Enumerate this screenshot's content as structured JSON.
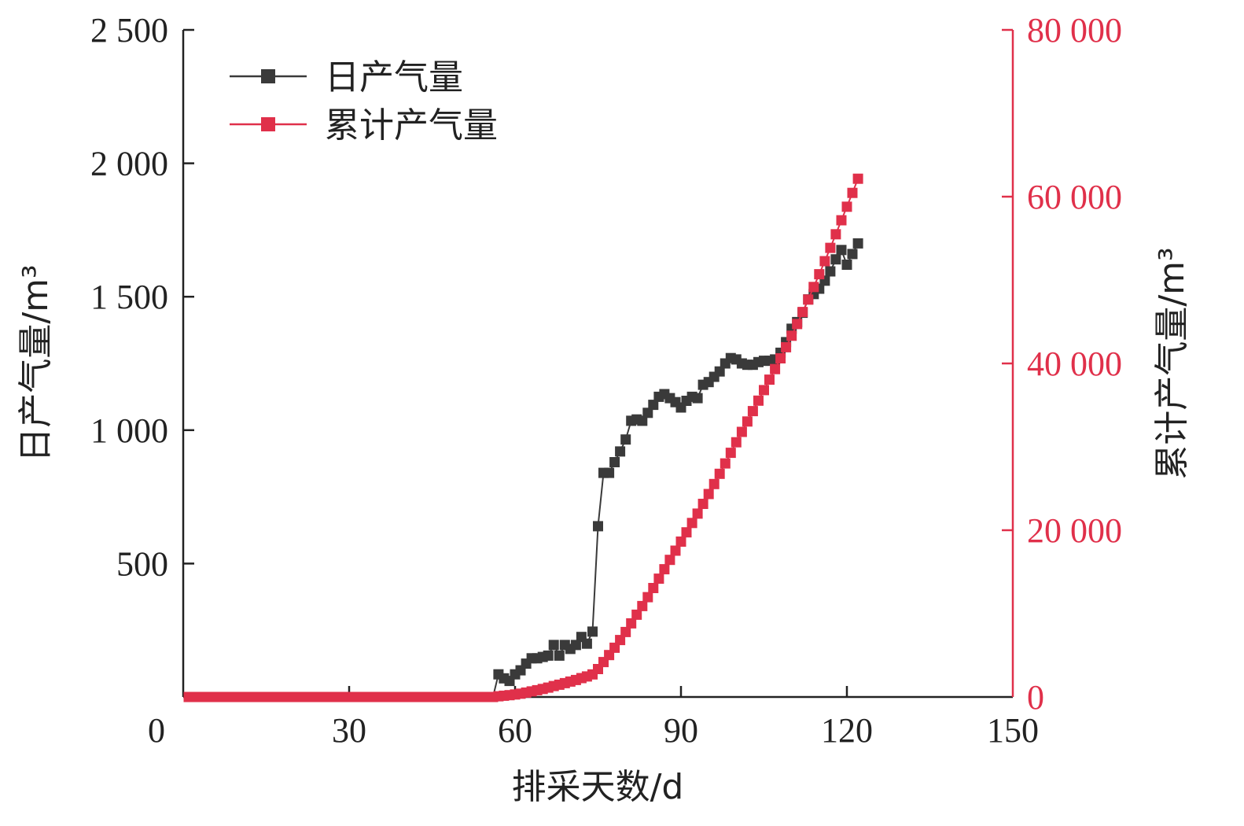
{
  "chart_data": {
    "type": "line",
    "xlabel": "排采天数/d",
    "ylabel_left": "日产气量/m³",
    "ylabel_right": "累计产气量/m³",
    "xlim": [
      0,
      150
    ],
    "ylim_left": [
      0,
      2500
    ],
    "ylim_right": [
      0,
      80000
    ],
    "x_ticks": [
      0,
      30,
      60,
      90,
      120,
      150
    ],
    "x_tick_labels": [
      "0",
      "30",
      "60",
      "90",
      "120",
      "150"
    ],
    "y_left_ticks": [
      500,
      1000,
      1500,
      2000,
      2500
    ],
    "y_left_tick_labels": [
      "500",
      "1 000",
      "1 500",
      "2 000",
      "2 500"
    ],
    "y_right_ticks": [
      0,
      20000,
      40000,
      60000,
      80000
    ],
    "y_right_tick_labels": [
      "0",
      "20 000",
      "40 000",
      "60 000",
      "80 000"
    ],
    "grid": false,
    "legend_position": "top-left",
    "colors": {
      "daily": "#3a3a3a",
      "cumulative": "#e0304a",
      "axis": "#222222"
    },
    "series": [
      {
        "name": "日产气量",
        "axis": "left",
        "color": "#3a3a3a",
        "x": [
          1,
          2,
          3,
          4,
          5,
          6,
          7,
          8,
          9,
          10,
          11,
          12,
          13,
          14,
          15,
          16,
          17,
          18,
          19,
          20,
          21,
          22,
          23,
          24,
          25,
          26,
          27,
          28,
          29,
          30,
          31,
          32,
          33,
          34,
          35,
          36,
          37,
          38,
          39,
          40,
          41,
          42,
          43,
          44,
          45,
          46,
          47,
          48,
          49,
          50,
          51,
          52,
          53,
          54,
          55,
          56,
          57,
          58,
          59,
          60,
          61,
          62,
          63,
          64,
          65,
          66,
          67,
          68,
          69,
          70,
          71,
          72,
          73,
          74,
          75,
          76,
          77,
          78,
          79,
          80,
          81,
          82,
          83,
          84,
          85,
          86,
          87,
          88,
          89,
          90,
          91,
          92,
          93,
          94,
          95,
          96,
          97,
          98,
          99,
          100,
          101,
          102,
          103,
          104,
          105,
          106,
          107,
          108,
          109,
          110,
          111,
          112,
          113,
          114,
          115,
          116,
          117,
          118,
          119,
          120,
          121,
          122
        ],
        "y": [
          0,
          0,
          0,
          0,
          0,
          0,
          0,
          0,
          0,
          0,
          0,
          0,
          0,
          0,
          0,
          0,
          0,
          0,
          0,
          0,
          0,
          0,
          0,
          0,
          0,
          0,
          0,
          0,
          0,
          0,
          0,
          0,
          0,
          0,
          0,
          0,
          0,
          0,
          0,
          0,
          0,
          0,
          0,
          0,
          0,
          0,
          0,
          0,
          0,
          0,
          0,
          0,
          0,
          0,
          0,
          0,
          85,
          70,
          60,
          85,
          100,
          125,
          145,
          145,
          150,
          155,
          195,
          155,
          195,
          180,
          195,
          225,
          200,
          245,
          640,
          840,
          840,
          880,
          920,
          965,
          1035,
          1040,
          1035,
          1065,
          1095,
          1125,
          1135,
          1120,
          1105,
          1085,
          1110,
          1125,
          1120,
          1170,
          1180,
          1200,
          1220,
          1250,
          1270,
          1265,
          1250,
          1245,
          1245,
          1255,
          1260,
          1260,
          1265,
          1290,
          1330,
          1380,
          1405,
          1440,
          1490,
          1510,
          1530,
          1560,
          1595,
          1640,
          1675,
          1620,
          1660,
          1700
        ]
      },
      {
        "name": "累计产气量",
        "axis": "right",
        "color": "#e0304a",
        "x": [
          1,
          2,
          3,
          4,
          5,
          6,
          7,
          8,
          9,
          10,
          11,
          12,
          13,
          14,
          15,
          16,
          17,
          18,
          19,
          20,
          21,
          22,
          23,
          24,
          25,
          26,
          27,
          28,
          29,
          30,
          31,
          32,
          33,
          34,
          35,
          36,
          37,
          38,
          39,
          40,
          41,
          42,
          43,
          44,
          45,
          46,
          47,
          48,
          49,
          50,
          51,
          52,
          53,
          54,
          55,
          56,
          57,
          58,
          59,
          60,
          61,
          62,
          63,
          64,
          65,
          66,
          67,
          68,
          69,
          70,
          71,
          72,
          73,
          74,
          75,
          76,
          77,
          78,
          79,
          80,
          81,
          82,
          83,
          84,
          85,
          86,
          87,
          88,
          89,
          90,
          91,
          92,
          93,
          94,
          95,
          96,
          97,
          98,
          99,
          100,
          101,
          102,
          103,
          104,
          105,
          106,
          107,
          108,
          109,
          110,
          111,
          112,
          113,
          114,
          115,
          116,
          117,
          118,
          119,
          120,
          121,
          122
        ],
        "y": [
          0,
          0,
          0,
          0,
          0,
          0,
          0,
          0,
          0,
          0,
          0,
          0,
          0,
          0,
          0,
          0,
          0,
          0,
          0,
          0,
          0,
          0,
          0,
          0,
          0,
          0,
          0,
          0,
          0,
          0,
          0,
          0,
          0,
          0,
          0,
          0,
          0,
          0,
          0,
          0,
          0,
          0,
          0,
          0,
          0,
          0,
          0,
          0,
          0,
          0,
          0,
          0,
          0,
          0,
          0,
          0,
          85,
          155,
          215,
          300,
          400,
          525,
          670,
          815,
          965,
          1120,
          1315,
          1470,
          1665,
          1845,
          2040,
          2265,
          2465,
          2710,
          3350,
          4190,
          5030,
          5910,
          6830,
          7795,
          8830,
          9870,
          10905,
          11970,
          13065,
          14190,
          15325,
          16445,
          17550,
          18635,
          19745,
          20870,
          21990,
          23160,
          24340,
          25540,
          26760,
          28010,
          29280,
          30545,
          31795,
          33040,
          34285,
          35540,
          36800,
          38060,
          39325,
          40615,
          41945,
          43325,
          44730,
          46170,
          47660,
          49170,
          50700,
          52260,
          53855,
          55495,
          57170,
          58790,
          60450,
          62150
        ]
      }
    ]
  }
}
